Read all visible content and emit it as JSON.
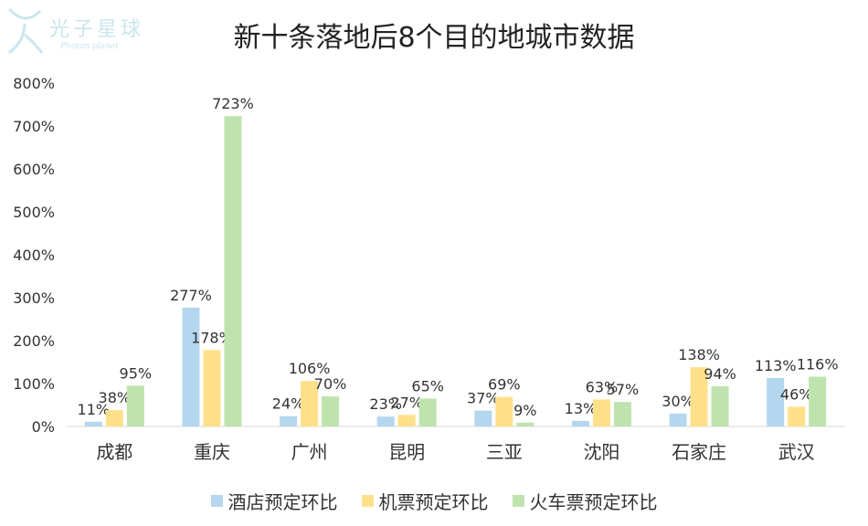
{
  "logo": {
    "text": "光子星球",
    "subtext": "Photon planet"
  },
  "chart_data": {
    "type": "bar",
    "title": "新十条落地后8个目的地城市数据",
    "categories": [
      "成都",
      "重庆",
      "广州",
      "昆明",
      "三亚",
      "沈阳",
      "石家庄",
      "武汉"
    ],
    "ylim": [
      0,
      800
    ],
    "yticks": [
      "0%",
      "100%",
      "200%",
      "300%",
      "400%",
      "500%",
      "600%",
      "700%",
      "800%"
    ],
    "grid": false,
    "legend_position": "bottom",
    "series": [
      {
        "name": "酒店预定环比",
        "color": "#b4d6ee",
        "values": [
          11,
          277,
          24,
          23,
          37,
          13,
          30,
          113
        ],
        "labels": [
          "11%",
          "277%",
          "24%",
          "23%",
          "37%",
          "13%",
          "30%",
          "113%"
        ]
      },
      {
        "name": "机票预定环比",
        "color": "#ffe08a",
        "values": [
          38,
          178,
          106,
          27,
          69,
          63,
          138,
          46
        ],
        "labels": [
          "38%",
          "178%",
          "106%",
          "27%",
          "69%",
          "63%",
          "138%",
          "46%"
        ]
      },
      {
        "name": "火车票预定环比",
        "color": "#bfe3ae",
        "values": [
          95,
          723,
          70,
          65,
          9,
          57,
          94,
          116
        ],
        "labels": [
          "95%",
          "723%",
          "70%",
          "65%",
          "9%",
          "57%",
          "94%",
          "116%"
        ]
      }
    ]
  }
}
